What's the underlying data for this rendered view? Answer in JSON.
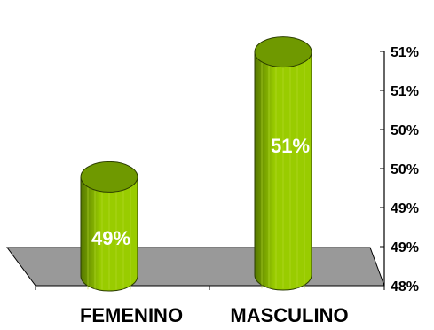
{
  "chart_data": {
    "type": "bar",
    "categories": [
      "FEMENINO",
      "MASCULINO"
    ],
    "values": [
      49.2,
      50.8
    ],
    "data_labels": [
      "49%",
      "51%"
    ],
    "ylim": [
      48.0,
      51.0
    ],
    "y_ticks": [
      48.0,
      48.5,
      49.0,
      49.5,
      50.0,
      50.5,
      51.0
    ],
    "y_tick_labels": [
      "48%",
      "49%",
      "49%",
      "50%",
      "50%",
      "51%",
      "51%"
    ],
    "y_axis_position": "right",
    "grid": false,
    "legend": "none",
    "title": "",
    "xlabel": "",
    "ylabel": "",
    "colors": {
      "bar_front": "#99cc00",
      "bar_shade": "#557700",
      "bar_top": "#6f9900",
      "bar_outline": "#2b3d00",
      "floor": "#999999"
    }
  }
}
